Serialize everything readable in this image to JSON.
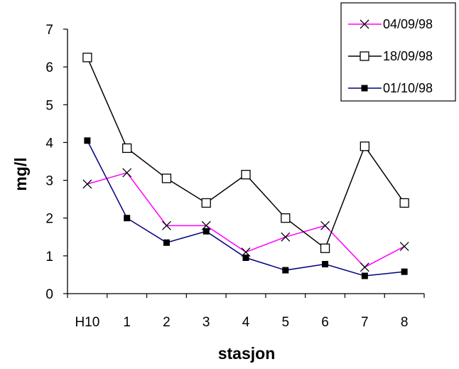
{
  "chart_data": {
    "type": "line",
    "title": "",
    "xlabel": "stasjon",
    "ylabel": "mg/l",
    "categories": [
      "H10",
      "1",
      "2",
      "3",
      "4",
      "5",
      "6",
      "7",
      "8"
    ],
    "ylim": [
      0,
      7
    ],
    "yticks": [
      "0",
      "1",
      "2",
      "3",
      "4",
      "5",
      "6",
      "7"
    ],
    "grid": false,
    "legend_position": "top-right",
    "series": [
      {
        "name": "04/09/98",
        "color": "#ff00ff",
        "marker": "x",
        "values": [
          2.9,
          3.2,
          1.8,
          1.8,
          1.1,
          1.5,
          1.8,
          0.7,
          1.25
        ]
      },
      {
        "name": "18/09/98",
        "color": "#000000",
        "marker": "open-square",
        "values": [
          6.25,
          3.85,
          3.05,
          2.4,
          3.15,
          2.0,
          1.2,
          3.9,
          2.4
        ]
      },
      {
        "name": "01/10/98",
        "color": "#000080",
        "marker": "filled-square",
        "values": [
          4.05,
          2.0,
          1.35,
          1.65,
          0.95,
          0.62,
          0.78,
          0.47,
          0.58
        ]
      }
    ]
  }
}
